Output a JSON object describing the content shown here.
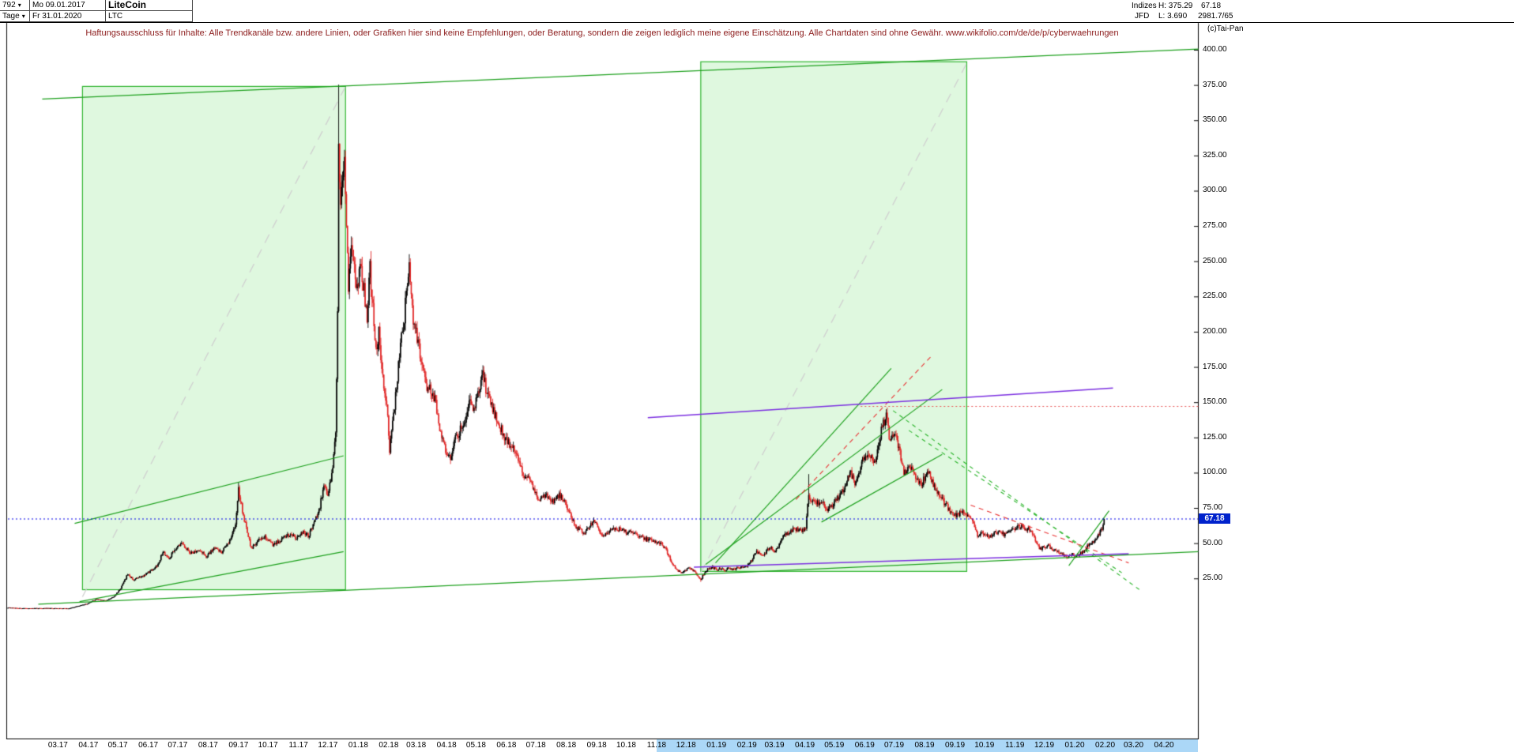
{
  "header": {
    "bars_count": "792",
    "date_start": "Mo 09.01.2017",
    "title": "LiteCoin",
    "period": "Tage",
    "date_end": "Fr 31.01.2020",
    "symbol": "LTC",
    "right": {
      "group_label": "Indizes",
      "high_label": "H: 375.29",
      "last_price": "67.18",
      "feed_label": "JFD",
      "low_label": "L: 3.690",
      "bars_stat": "2981.7/65",
      "copyright": "(c)Tai-Pan"
    }
  },
  "disclaimer": "Haftungsausschluss für Inhalte: Alle Trendkanäle bzw. andere Linien, oder Grafiken hier sind keine Empfehlungen, oder Beratung, sondern die zeigen lediglich meine eigene Einschätzung. Alle Chartdaten sind ohne Gewähr.   www.wikifolio.com/de/de/p/cyberwaehrungen",
  "price_tag": "67.18",
  "colors": {
    "candle_up": "#000000",
    "candle_down": "#e02525",
    "box_fill": "rgba(150,232,150,0.30)",
    "box_border": "#2fb52f",
    "trend_green": "#1da01d",
    "gray_dash": "#cfcfcf",
    "green_dash": "#2ab42a",
    "red_dash": "#e83333",
    "red_dot": "#e85555",
    "purple": "#7b2fe0",
    "blue_dot": "#0000e8",
    "price_tag_bg": "#0022cc",
    "highlight": "#abd7f7",
    "disclaimer": "#8b1a1a"
  },
  "chart_data": {
    "type": "candlestick",
    "title": "LiteCoin",
    "symbol": "LTC",
    "timeframe": "Tage",
    "range_start": "09.01.2017",
    "range_end": "31.01.2020",
    "bars": 792,
    "high": 375.29,
    "low": 3.69,
    "last": 67.18,
    "y_ticks": [
      "400.00",
      "375.00",
      "350.00",
      "325.00",
      "300.00",
      "275.00",
      "250.00",
      "225.00",
      "200.00",
      "175.00",
      "150.00",
      "125.00",
      "100.00",
      "75.00",
      "50.00",
      "25.00"
    ],
    "x_labels": [
      "03.17",
      "04.17",
      "05.17",
      "06.17",
      "07.17",
      "08.17",
      "09.17",
      "10.17",
      "11.17",
      "12.17",
      "01.18",
      "02.18",
      "03.18",
      "04.18",
      "05.18",
      "06.18",
      "07.18",
      "08.18",
      "09.18",
      "10.18",
      "11.18",
      "12.18",
      "01.19",
      "02.19",
      "03.19",
      "04.19",
      "05.19",
      "06.19",
      "07.19",
      "08.19",
      "09.19",
      "10.19",
      "11.19",
      "12.19",
      "01.20",
      "02.20",
      "03.20",
      "04.20"
    ],
    "highlight_from_label": "11.18",
    "current_price_level": 67.18,
    "waypoints": [
      [
        0,
        4.3
      ],
      [
        15,
        3.8
      ],
      [
        40,
        3.9
      ],
      [
        62,
        3.75
      ],
      [
        75,
        6
      ],
      [
        82,
        7.3
      ],
      [
        90,
        10.3
      ],
      [
        100,
        9.2
      ],
      [
        108,
        12
      ],
      [
        115,
        18
      ],
      [
        122,
        28
      ],
      [
        128,
        24
      ],
      [
        136,
        26
      ],
      [
        145,
        30
      ],
      [
        152,
        34
      ],
      [
        158,
        44
      ],
      [
        164,
        39
      ],
      [
        170,
        46
      ],
      [
        178,
        50
      ],
      [
        186,
        43
      ],
      [
        194,
        45
      ],
      [
        202,
        41
      ],
      [
        210,
        46
      ],
      [
        218,
        44
      ],
      [
        226,
        52
      ],
      [
        232,
        64
      ],
      [
        235,
        88
      ],
      [
        240,
        70
      ],
      [
        248,
        46
      ],
      [
        255,
        52
      ],
      [
        262,
        54
      ],
      [
        270,
        49
      ],
      [
        278,
        52
      ],
      [
        286,
        56
      ],
      [
        294,
        54
      ],
      [
        300,
        58
      ],
      [
        306,
        55
      ],
      [
        312,
        64
      ],
      [
        318,
        76
      ],
      [
        322,
        92
      ],
      [
        326,
        84
      ],
      [
        330,
        98
      ],
      [
        334,
        130
      ],
      [
        336,
        210
      ],
      [
        337,
        330
      ],
      [
        339,
        290
      ],
      [
        341,
        310
      ],
      [
        343,
        330
      ],
      [
        345,
        280
      ],
      [
        347,
        230
      ],
      [
        350,
        265
      ],
      [
        353,
        245
      ],
      [
        356,
        230
      ],
      [
        359,
        245
      ],
      [
        362,
        235
      ],
      [
        366,
        210
      ],
      [
        369,
        245
      ],
      [
        372,
        215
      ],
      [
        375,
        185
      ],
      [
        378,
        200
      ],
      [
        381,
        170
      ],
      [
        384,
        160
      ],
      [
        387,
        140
      ],
      [
        389,
        115
      ],
      [
        392,
        135
      ],
      [
        395,
        155
      ],
      [
        398,
        175
      ],
      [
        401,
        195
      ],
      [
        404,
        210
      ],
      [
        407,
        235
      ],
      [
        409,
        245
      ],
      [
        412,
        215
      ],
      [
        415,
        200
      ],
      [
        419,
        190
      ],
      [
        423,
        170
      ],
      [
        427,
        162
      ],
      [
        431,
        158
      ],
      [
        435,
        152
      ],
      [
        439,
        135
      ],
      [
        443,
        122
      ],
      [
        447,
        115
      ],
      [
        451,
        112
      ],
      [
        455,
        122
      ],
      [
        459,
        128
      ],
      [
        463,
        133
      ],
      [
        467,
        140
      ],
      [
        471,
        150
      ],
      [
        475,
        145
      ],
      [
        479,
        155
      ],
      [
        484,
        168
      ],
      [
        488,
        158
      ],
      [
        492,
        150
      ],
      [
        497,
        140
      ],
      [
        502,
        132
      ],
      [
        507,
        125
      ],
      [
        512,
        120
      ],
      [
        517,
        114
      ],
      [
        522,
        105
      ],
      [
        526,
        96
      ],
      [
        530,
        100
      ],
      [
        534,
        92
      ],
      [
        538,
        84
      ],
      [
        542,
        80
      ],
      [
        546,
        85
      ],
      [
        550,
        83
      ],
      [
        554,
        79
      ],
      [
        558,
        82
      ],
      [
        562,
        84
      ],
      [
        566,
        80
      ],
      [
        570,
        75
      ],
      [
        574,
        68
      ],
      [
        578,
        62
      ],
      [
        582,
        60
      ],
      [
        586,
        57
      ],
      [
        590,
        60
      ],
      [
        594,
        63
      ],
      [
        598,
        66
      ],
      [
        602,
        60
      ],
      [
        606,
        55
      ],
      [
        610,
        57
      ],
      [
        614,
        59
      ],
      [
        618,
        61
      ],
      [
        622,
        60
      ],
      [
        626,
        59
      ],
      [
        630,
        58
      ],
      [
        635,
        57
      ],
      [
        640,
        56
      ],
      [
        645,
        55
      ],
      [
        650,
        53
      ],
      [
        655,
        52
      ],
      [
        660,
        51
      ],
      [
        665,
        50
      ],
      [
        670,
        46
      ],
      [
        674,
        40
      ],
      [
        678,
        34
      ],
      [
        682,
        31
      ],
      [
        686,
        29
      ],
      [
        690,
        31
      ],
      [
        694,
        32
      ],
      [
        698,
        31
      ],
      [
        702,
        28
      ],
      [
        706,
        24
      ],
      [
        709,
        28
      ],
      [
        712,
        31
      ],
      [
        715,
        32
      ],
      [
        718,
        33
      ],
      [
        722,
        31
      ],
      [
        726,
        32
      ],
      [
        730,
        31
      ],
      [
        734,
        32
      ],
      [
        738,
        31
      ],
      [
        742,
        32
      ],
      [
        746,
        33
      ],
      [
        750,
        33
      ],
      [
        754,
        34
      ],
      [
        758,
        38
      ],
      [
        762,
        44
      ],
      [
        766,
        43
      ],
      [
        770,
        42
      ],
      [
        774,
        45
      ],
      [
        778,
        47
      ],
      [
        781,
        44
      ],
      [
        785,
        48
      ],
      [
        789,
        54
      ],
      [
        793,
        57
      ],
      [
        797,
        58
      ],
      [
        801,
        60
      ],
      [
        805,
        60
      ],
      [
        809,
        59
      ],
      [
        813,
        60
      ],
      [
        816,
        85
      ],
      [
        819,
        79
      ],
      [
        823,
        80
      ],
      [
        827,
        77
      ],
      [
        831,
        78
      ],
      [
        835,
        74
      ],
      [
        839,
        75
      ],
      [
        843,
        80
      ],
      [
        847,
        84
      ],
      [
        851,
        88
      ],
      [
        855,
        95
      ],
      [
        858,
        102
      ],
      [
        861,
        96
      ],
      [
        864,
        92
      ],
      [
        867,
        100
      ],
      [
        870,
        107
      ],
      [
        873,
        110
      ],
      [
        876,
        112
      ],
      [
        879,
        113
      ],
      [
        882,
        105
      ],
      [
        885,
        112
      ],
      [
        888,
        124
      ],
      [
        891,
        133
      ],
      [
        894,
        138
      ],
      [
        896,
        142
      ],
      [
        898,
        122
      ],
      [
        900,
        126
      ],
      [
        902,
        129
      ],
      [
        905,
        124
      ],
      [
        908,
        118
      ],
      [
        911,
        108
      ],
      [
        913,
        98
      ],
      [
        916,
        103
      ],
      [
        919,
        106
      ],
      [
        922,
        100
      ],
      [
        925,
        95
      ],
      [
        928,
        93
      ],
      [
        931,
        92
      ],
      [
        934,
        96
      ],
      [
        938,
        100
      ],
      [
        941,
        94
      ],
      [
        945,
        89
      ],
      [
        949,
        84
      ],
      [
        953,
        80
      ],
      [
        957,
        76
      ],
      [
        961,
        72
      ],
      [
        965,
        70
      ],
      [
        969,
        71
      ],
      [
        973,
        72
      ],
      [
        977,
        70
      ],
      [
        981,
        69
      ],
      [
        985,
        62
      ],
      [
        988,
        55
      ],
      [
        992,
        57
      ],
      [
        996,
        56
      ],
      [
        1000,
        55
      ],
      [
        1004,
        56
      ],
      [
        1008,
        58
      ],
      [
        1012,
        57
      ],
      [
        1016,
        56
      ],
      [
        1020,
        58
      ],
      [
        1024,
        60
      ],
      [
        1028,
        61
      ],
      [
        1032,
        62
      ],
      [
        1036,
        61
      ],
      [
        1040,
        60
      ],
      [
        1044,
        56
      ],
      [
        1048,
        50
      ],
      [
        1052,
        46
      ],
      [
        1056,
        47
      ],
      [
        1060,
        48
      ],
      [
        1064,
        46
      ],
      [
        1068,
        45
      ],
      [
        1072,
        43
      ],
      [
        1076,
        41
      ],
      [
        1080,
        40
      ],
      [
        1084,
        42
      ],
      [
        1088,
        41
      ],
      [
        1092,
        42
      ],
      [
        1096,
        44
      ],
      [
        1100,
        48
      ],
      [
        1104,
        50
      ],
      [
        1108,
        53
      ],
      [
        1112,
        57
      ],
      [
        1115,
        60
      ],
      [
        1117,
        67.18
      ]
    ],
    "spike_highs": {
      "235": 93,
      "337": 375.29,
      "409": 255,
      "484": 175,
      "816": 99,
      "896": 146.2
    },
    "spike_lows": {
      "62": 3.69,
      "706": 22.6
    },
    "annotations": {
      "boxes": [
        {
          "d1": 76,
          "d2": 344,
          "p_low": 17,
          "p_high": 374
        },
        {
          "d1": 706,
          "d2": 977,
          "p_low": 30,
          "p_high": 391.5
        }
      ],
      "lines": [
        {
          "d1": 35,
          "p1": 365,
          "d2": 1213,
          "p2": 400.5,
          "style": "trend_green"
        },
        {
          "d1": 76,
          "p1": 12,
          "d2": 344,
          "p2": 374,
          "style": "gray_dash"
        },
        {
          "d1": 706,
          "p1": 29,
          "d2": 977,
          "p2": 390.5,
          "style": "gray_dash"
        },
        {
          "d1": 73,
          "p1": 8.5,
          "d2": 342,
          "p2": 44,
          "style": "trend_green"
        },
        {
          "d1": 68,
          "p1": 64,
          "d2": 342,
          "p2": 112,
          "style": "trend_green"
        },
        {
          "d1": 721,
          "p1": 36,
          "d2": 900,
          "p2": 174,
          "style": "trend_green"
        },
        {
          "d1": 711,
          "p1": 35,
          "d2": 952,
          "p2": 159,
          "style": "trend_green"
        },
        {
          "d1": 829,
          "p1": 65,
          "d2": 952,
          "p2": 113,
          "style": "trend_green"
        },
        {
          "d1": 902,
          "p1": 144,
          "d2": 1155,
          "p2": 16,
          "style": "green_dash"
        },
        {
          "d1": 918,
          "p1": 130,
          "d2": 1135,
          "p2": 29,
          "style": "green_dash"
        },
        {
          "d1": 803,
          "p1": 81,
          "d2": 940,
          "p2": 182,
          "style": "red_dash"
        },
        {
          "d1": 869,
          "p1": 147,
          "d2": 1213,
          "p2": 147,
          "style": "red_dot"
        },
        {
          "d1": 981,
          "p1": 77,
          "d2": 1142,
          "p2": 36,
          "style": "red_dash"
        },
        {
          "d1": 652,
          "p1": 139,
          "d2": 1126,
          "p2": 160,
          "style": "purple"
        },
        {
          "d1": 699,
          "p1": 33,
          "d2": 1142,
          "p2": 42.5,
          "style": "purple"
        },
        {
          "d1": 1081,
          "p1": 34,
          "d2": 1122,
          "p2": 73,
          "style": "trend_green"
        },
        {
          "d1": 31,
          "p1": 6.7,
          "d2": 1213,
          "p2": 44,
          "style": "trend_green"
        },
        {
          "d1": 0,
          "p1": 67.18,
          "d2": 1213,
          "p2": 67.18,
          "style": "blue_dot"
        }
      ]
    }
  }
}
